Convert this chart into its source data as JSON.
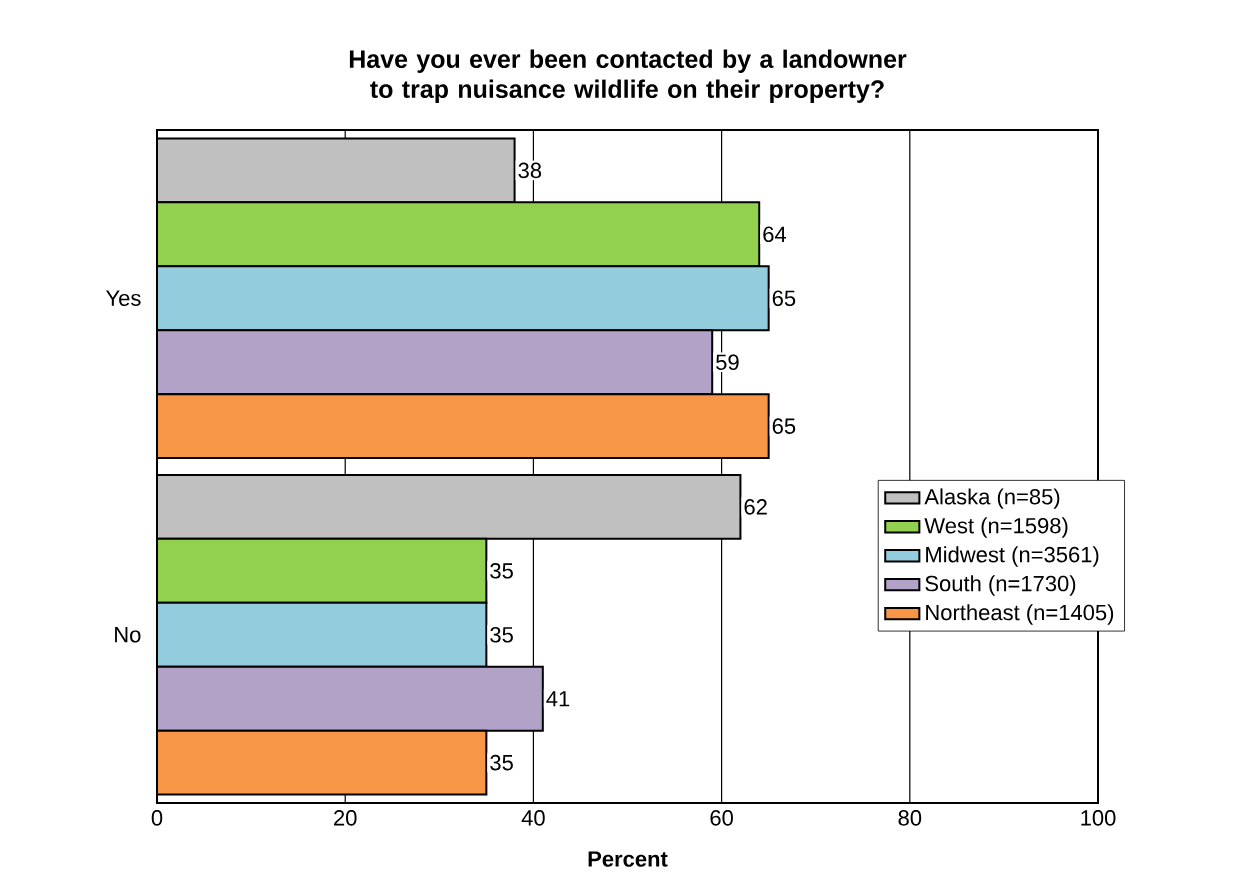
{
  "chart_data": {
    "type": "bar",
    "orientation": "horizontal",
    "title": "Have you ever been contacted by a landowner to trap nuisance wildlife on their property?",
    "xlabel": "Percent",
    "categories": [
      "Yes",
      "No"
    ],
    "series": [
      {
        "name": "Alaska (n=85)",
        "color": "#c0c0c0",
        "values": [
          38,
          62
        ]
      },
      {
        "name": "West (n=1598)",
        "color": "#92d050",
        "values": [
          64,
          35
        ]
      },
      {
        "name": "Midwest (n=3561)",
        "color": "#93cddd",
        "values": [
          65,
          35
        ]
      },
      {
        "name": "South (n=1730)",
        "color": "#b2a2c7",
        "values": [
          59,
          41
        ]
      },
      {
        "name": "Northeast (n=1405)",
        "color": "#f79646",
        "values": [
          65,
          35
        ]
      }
    ],
    "xlim": [
      0,
      100
    ],
    "xticks": [
      0,
      20,
      40,
      60,
      80,
      100
    ],
    "grid": "x",
    "legend": "right",
    "data_labels": true
  }
}
